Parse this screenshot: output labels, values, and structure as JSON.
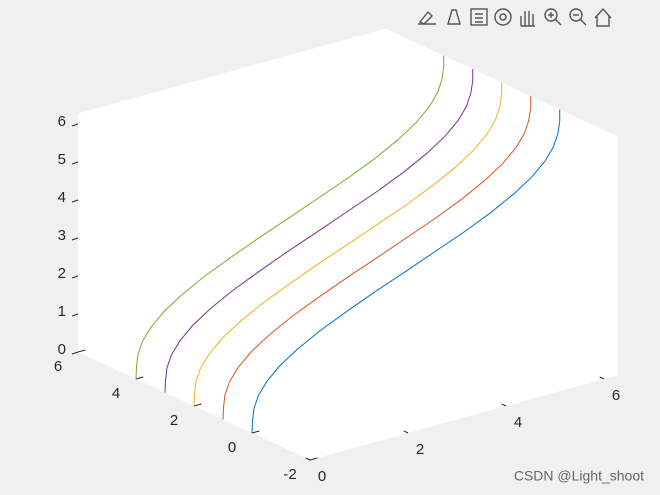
{
  "chart_data": {
    "type": "line3d",
    "x": [
      0,
      0.01,
      0.04,
      0.13,
      0.31,
      0.57,
      0.93,
      1.39,
      1.93,
      2.52,
      3.14,
      3.76,
      4.36,
      4.89,
      5.35,
      5.71,
      5.98,
      6.15,
      6.24,
      6.28,
      6.28
    ],
    "series": [
      {
        "color": "#0072bd",
        "y": 0,
        "values": [
          0,
          0.31,
          0.63,
          0.94,
          1.26,
          1.57,
          1.88,
          2.2,
          2.51,
          2.83,
          3.14,
          3.46,
          3.77,
          4.08,
          4.4,
          4.71,
          5.03,
          5.34,
          5.65,
          5.97,
          6.28
        ]
      },
      {
        "color": "#d95319",
        "y": 1,
        "values": [
          0,
          0.31,
          0.63,
          0.94,
          1.26,
          1.57,
          1.88,
          2.2,
          2.51,
          2.83,
          3.14,
          3.46,
          3.77,
          4.08,
          4.4,
          4.71,
          5.03,
          5.34,
          5.65,
          5.97,
          6.28
        ]
      },
      {
        "color": "#edb120",
        "y": 2,
        "values": [
          0,
          0.31,
          0.63,
          0.94,
          1.26,
          1.57,
          1.88,
          2.2,
          2.51,
          2.83,
          3.14,
          3.46,
          3.77,
          4.08,
          4.4,
          4.71,
          5.03,
          5.34,
          5.65,
          5.97,
          6.28
        ]
      },
      {
        "color": "#7e2f8e",
        "y": 3,
        "values": [
          0,
          0.31,
          0.63,
          0.94,
          1.26,
          1.57,
          1.88,
          2.2,
          2.51,
          2.83,
          3.14,
          3.46,
          3.77,
          4.08,
          4.4,
          4.71,
          5.03,
          5.34,
          5.65,
          5.97,
          6.28
        ]
      },
      {
        "color": "#77ac30",
        "y": 4,
        "values": [
          0,
          0.31,
          0.63,
          0.94,
          1.26,
          1.57,
          1.88,
          2.2,
          2.51,
          2.83,
          3.14,
          3.46,
          3.77,
          4.08,
          4.4,
          4.71,
          5.03,
          5.34,
          5.65,
          5.97,
          6.28
        ]
      }
    ],
    "xlim": [
      0,
      6.28
    ],
    "ylim": [
      -2,
      6
    ],
    "zlim": [
      0,
      6.28
    ],
    "xticks": [
      0,
      2,
      4,
      6
    ],
    "yticks": [
      -2,
      0,
      2,
      4,
      6
    ],
    "zticks": [
      0,
      1,
      2,
      3,
      4,
      5,
      6
    ]
  },
  "watermark": "CSDN @Light_shoot"
}
